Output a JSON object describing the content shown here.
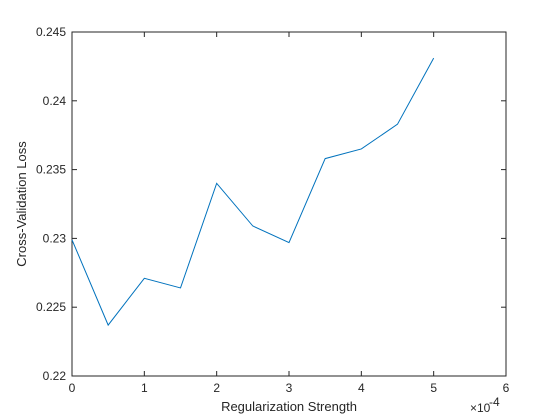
{
  "chart_data": {
    "type": "line",
    "x_label": "Regularization Strength",
    "y_label": "Cross-Validation Loss",
    "x_exponent_base": "×10",
    "x_exponent_power": "-4",
    "x": [
      0,
      0.5,
      1,
      1.5,
      2,
      2.5,
      3,
      3.5,
      4,
      4.5,
      5
    ],
    "series": [
      {
        "color": "#0072bd",
        "values": [
          0.2299,
          0.2237,
          0.2271,
          0.2264,
          0.234,
          0.2309,
          0.2297,
          0.2358,
          0.2365,
          0.2383,
          0.2431
        ]
      }
    ],
    "xlim": [
      0,
      6
    ],
    "xticks": [
      0,
      1,
      2,
      3,
      4,
      5,
      6
    ],
    "ylim": [
      0.22,
      0.245
    ],
    "yticks": [
      0.22,
      0.225,
      0.23,
      0.235,
      0.24,
      0.245
    ],
    "grid": false
  }
}
